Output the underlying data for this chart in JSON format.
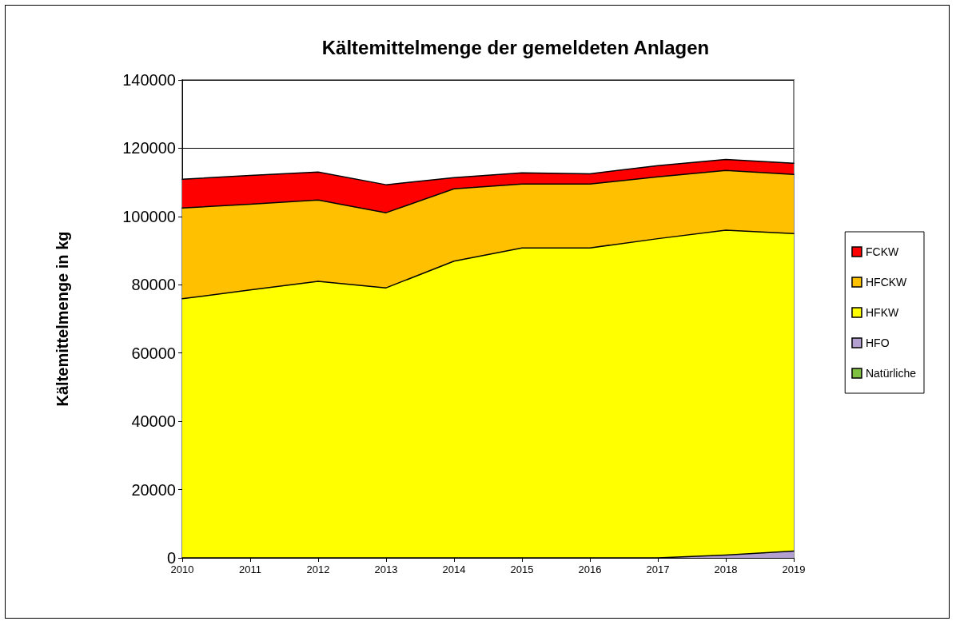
{
  "chart_data": {
    "type": "area",
    "title": "Kältemittelmenge der gemeldeten Anlagen",
    "ylabel": "Kältemittelmenge in kg",
    "categories": [
      "2010",
      "2011",
      "2012",
      "2013",
      "2014",
      "2015",
      "2016",
      "2017",
      "2018",
      "2019"
    ],
    "stacked": true,
    "ylim": [
      0,
      140000
    ],
    "yticks": [
      0,
      20000,
      40000,
      60000,
      80000,
      100000,
      120000,
      140000
    ],
    "grid": "y",
    "legend": "right",
    "series": [
      {
        "name": "Natürliche",
        "color": "#80c040",
        "values": [
          null,
          null,
          null,
          null,
          null,
          null,
          null,
          null,
          null,
          null
        ]
      },
      {
        "name": "HFO",
        "color": "#b4a0d0",
        "values": [
          0,
          0,
          0,
          0,
          0,
          0,
          0,
          0,
          800,
          2000
        ]
      },
      {
        "name": "HFKW",
        "color": "#ffff00",
        "values": [
          75900,
          78500,
          81000,
          79100,
          86900,
          90800,
          90800,
          93500,
          95200,
          93000
        ]
      },
      {
        "name": "HFCKW",
        "color": "#ffc000",
        "values": [
          26600,
          25100,
          23800,
          22000,
          21200,
          18700,
          18700,
          18100,
          17500,
          17300
        ]
      },
      {
        "name": "FCKW",
        "color": "#ff0000",
        "values": [
          8400,
          8400,
          8200,
          8200,
          3300,
          3300,
          3000,
          3300,
          3200,
          3300
        ]
      }
    ]
  }
}
